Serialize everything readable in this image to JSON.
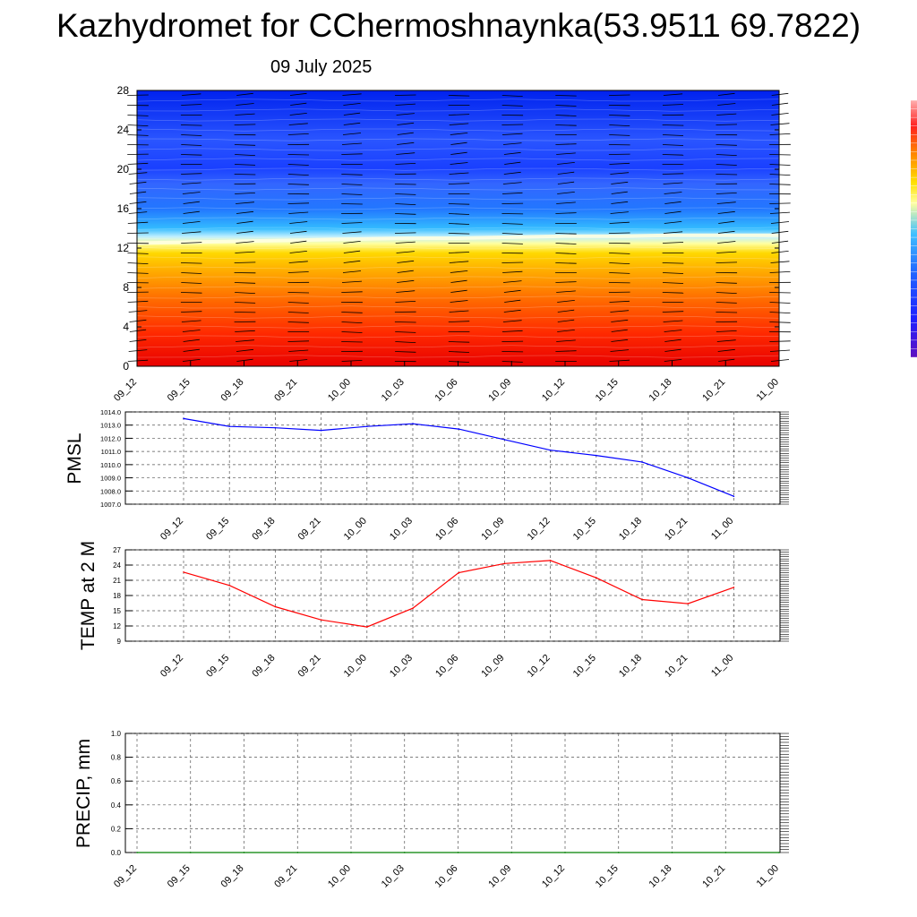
{
  "title": "Kazhydromet for CChermoshnaynka(53.9511 69.7822)",
  "subtitle": "09 July 2025",
  "time_labels": [
    "09_12",
    "09_15",
    "09_18",
    "09_21",
    "10_00",
    "10_03",
    "10_06",
    "10_09",
    "10_12",
    "10_15",
    "10_18",
    "10_21",
    "11_00"
  ],
  "colors": {
    "pmsl": "#0000ff",
    "temp": "#ff0000",
    "precip": "#008000",
    "grid": "#555555"
  },
  "chart_data": [
    {
      "type": "heatmap",
      "title": "",
      "ylabel": "",
      "x": [
        "09_12",
        "09_15",
        "09_18",
        "09_21",
        "10_00",
        "10_03",
        "10_06",
        "10_09",
        "10_12",
        "10_15",
        "10_18",
        "10_21",
        "11_00"
      ],
      "ylim": [
        0,
        28
      ],
      "yticks": [
        0,
        4,
        8,
        12,
        16,
        20,
        24,
        28
      ],
      "freezing_level_km": [
        12.5,
        12.6,
        12.7,
        12.8,
        12.9,
        13.0,
        13.0,
        13.1,
        13.2,
        13.2,
        13.3,
        13.3,
        13.3
      ],
      "colormap": [
        "#ee0000",
        "#ff7700",
        "#ffc000",
        "#ffff99",
        "#33ccff",
        "#2266ff",
        "#0033ff"
      ],
      "overlay": "wind barbs"
    },
    {
      "type": "line",
      "ylabel": "PMSL",
      "x": [
        "09_12",
        "09_15",
        "09_18",
        "09_21",
        "10_00",
        "10_03",
        "10_06",
        "10_09",
        "10_12",
        "10_15",
        "10_18",
        "10_21",
        "11_00"
      ],
      "series": [
        {
          "values": [
            1013.5,
            1012.9,
            1012.8,
            1012.6,
            1012.9,
            1013.1,
            1012.7,
            1011.9,
            1011.1,
            1010.7,
            1010.2,
            1009.0,
            1007.6
          ]
        }
      ],
      "ylim": [
        1007.0,
        1014.0
      ],
      "yticks": [
        "1007.0",
        "1008.0",
        "1009.0",
        "1010.0",
        "1011.0",
        "1012.0",
        "1013.0",
        "1014.0"
      ],
      "grid": true
    },
    {
      "type": "line",
      "ylabel": "TEMP at 2 M",
      "x": [
        "09_12",
        "09_15",
        "09_18",
        "09_21",
        "10_00",
        "10_03",
        "10_06",
        "10_09",
        "10_12",
        "10_15",
        "10_18",
        "10_21",
        "11_00"
      ],
      "series": [
        {
          "values": [
            22.6,
            20.0,
            15.8,
            13.2,
            11.8,
            15.5,
            22.5,
            24.3,
            24.9,
            21.5,
            17.2,
            16.4,
            19.6
          ]
        }
      ],
      "ylim": [
        9,
        27
      ],
      "yticks": [
        "9",
        "12",
        "15",
        "18",
        "21",
        "24",
        "27"
      ],
      "grid": true
    },
    {
      "type": "line",
      "ylabel": "PRECIP, mm",
      "x": [
        "09_12",
        "09_15",
        "09_18",
        "09_21",
        "10_00",
        "10_03",
        "10_06",
        "10_09",
        "10_12",
        "10_15",
        "10_18",
        "10_21",
        "11_00"
      ],
      "series": [
        {
          "values": [
            0,
            0,
            0,
            0,
            0,
            0,
            0,
            0,
            0,
            0,
            0,
            0,
            0
          ]
        }
      ],
      "ylim": [
        0,
        1.0
      ],
      "yticks": [
        "0.0",
        "0.2",
        "0.4",
        "0.6",
        "0.8",
        "1.0"
      ],
      "grid": true
    }
  ]
}
